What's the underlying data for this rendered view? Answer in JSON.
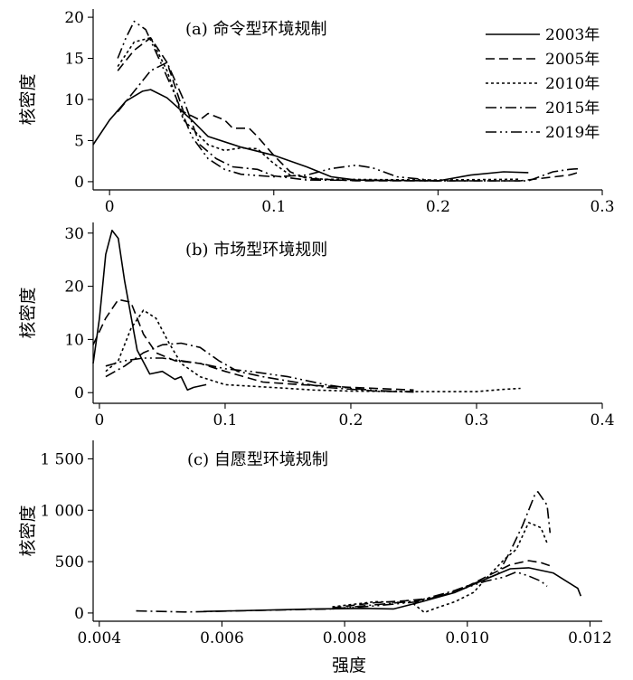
{
  "figure": {
    "xlabel": "强度"
  },
  "legend": {
    "entries": [
      {
        "name": "2003年",
        "dash": "solid"
      },
      {
        "name": "2005年",
        "dash": "dashed"
      },
      {
        "name": "2010年",
        "dash": "dotted"
      },
      {
        "name": "2015年",
        "dash": "dashdot"
      },
      {
        "name": "2019年",
        "dash": "dashdotdot"
      }
    ],
    "placement": "top-right of panel (a)"
  },
  "chart_data": [
    {
      "type": "line",
      "title": "(a) 命令型环境规制",
      "xlabel": "",
      "ylabel": "核密度",
      "xlim": [
        -0.01,
        0.3
      ],
      "ylim": [
        -1,
        21
      ],
      "xticks": [
        0,
        0.1,
        0.2,
        0.3
      ],
      "xtick_labels": [
        "0",
        "0.1",
        "0.2",
        "0.3"
      ],
      "yticks": [
        0,
        5,
        10,
        15,
        20
      ],
      "ytick_labels": [
        "0",
        "5",
        "10",
        "15",
        "20"
      ],
      "grid": false,
      "series": [
        {
          "name": "2003年",
          "dash": "solid",
          "points": [
            [
              -0.01,
              4.5
            ],
            [
              0,
              7.5
            ],
            [
              0.01,
              9.8
            ],
            [
              0.02,
              11
            ],
            [
              0.025,
              11.2
            ],
            [
              0.035,
              10.2
            ],
            [
              0.05,
              7.5
            ],
            [
              0.06,
              5.5
            ],
            [
              0.08,
              4.2
            ],
            [
              0.1,
              3.2
            ],
            [
              0.12,
              1.8
            ],
            [
              0.135,
              0.6
            ],
            [
              0.15,
              0.2
            ],
            [
              0.2,
              0.1
            ],
            [
              0.22,
              0.8
            ],
            [
              0.24,
              1.2
            ],
            [
              0.255,
              1.1
            ]
          ]
        },
        {
          "name": "2005年",
          "dash": "dashed",
          "points": [
            [
              0.005,
              13.5
            ],
            [
              0.015,
              16
            ],
            [
              0.025,
              17.5
            ],
            [
              0.035,
              14.5
            ],
            [
              0.045,
              8.5
            ],
            [
              0.055,
              7.5
            ],
            [
              0.06,
              8.3
            ],
            [
              0.07,
              7.5
            ],
            [
              0.075,
              6.5
            ],
            [
              0.085,
              6.5
            ],
            [
              0.09,
              5.5
            ],
            [
              0.1,
              3.2
            ],
            [
              0.11,
              1.2
            ],
            [
              0.12,
              0.4
            ],
            [
              0.15,
              0.1
            ],
            [
              0.25,
              0.1
            ],
            [
              0.28,
              0.8
            ],
            [
              0.285,
              1.1
            ]
          ]
        },
        {
          "name": "2010年",
          "dash": "dotted",
          "points": [
            [
              0.005,
              14
            ],
            [
              0.015,
              17
            ],
            [
              0.025,
              17.5
            ],
            [
              0.035,
              13.5
            ],
            [
              0.045,
              7.5
            ],
            [
              0.06,
              4.5
            ],
            [
              0.07,
              3.8
            ],
            [
              0.08,
              4.1
            ],
            [
              0.09,
              4.0
            ],
            [
              0.1,
              2.2
            ],
            [
              0.11,
              0.8
            ],
            [
              0.13,
              0.3
            ],
            [
              0.2,
              0.2
            ],
            [
              0.25,
              0.3
            ]
          ]
        },
        {
          "name": "2015年",
          "dash": "dashdot",
          "points": [
            [
              0.005,
              8.5
            ],
            [
              0.015,
              11
            ],
            [
              0.025,
              13.5
            ],
            [
              0.035,
              14.5
            ],
            [
              0.045,
              10
            ],
            [
              0.055,
              4.5
            ],
            [
              0.065,
              2.8
            ],
            [
              0.075,
              1.8
            ],
            [
              0.09,
              1.5
            ],
            [
              0.1,
              0.7
            ],
            [
              0.12,
              0.2
            ],
            [
              0.2,
              0.1
            ],
            [
              0.255,
              0.1
            ],
            [
              0.27,
              1.2
            ],
            [
              0.28,
              1.5
            ],
            [
              0.287,
              1.6
            ]
          ]
        },
        {
          "name": "2019年",
          "dash": "dashdotdot",
          "points": [
            [
              0.005,
              15
            ],
            [
              0.01,
              17.5
            ],
            [
              0.015,
              19.5
            ],
            [
              0.022,
              18.5
            ],
            [
              0.03,
              15
            ],
            [
              0.04,
              10.5
            ],
            [
              0.05,
              5.5
            ],
            [
              0.06,
              2.8
            ],
            [
              0.07,
              1.5
            ],
            [
              0.08,
              0.9
            ],
            [
              0.1,
              0.6
            ],
            [
              0.12,
              0.8
            ],
            [
              0.135,
              1.6
            ],
            [
              0.15,
              2.0
            ],
            [
              0.16,
              1.7
            ],
            [
              0.175,
              0.6
            ],
            [
              0.2,
              0.1
            ]
          ]
        }
      ]
    },
    {
      "type": "line",
      "title": "(b) 市场型环境规则",
      "xlabel": "",
      "ylabel": "核密度",
      "xlim": [
        -0.005,
        0.4
      ],
      "ylim": [
        -2,
        32
      ],
      "xticks": [
        0,
        0.1,
        0.2,
        0.3,
        0.4
      ],
      "xtick_labels": [
        "0",
        "0.1",
        "0.2",
        "0.3",
        "0.4"
      ],
      "yticks": [
        0,
        10,
        20,
        30
      ],
      "ytick_labels": [
        "0",
        "10",
        "20",
        "30"
      ],
      "grid": false,
      "series": [
        {
          "name": "2003年",
          "dash": "solid",
          "points": [
            [
              -0.005,
              5.5
            ],
            [
              0,
              14
            ],
            [
              0.005,
              26
            ],
            [
              0.01,
              30.5
            ],
            [
              0.015,
              29
            ],
            [
              0.02,
              21
            ],
            [
              0.03,
              8
            ],
            [
              0.04,
              3.5
            ],
            [
              0.05,
              4
            ],
            [
              0.06,
              2.5
            ],
            [
              0.065,
              3
            ],
            [
              0.07,
              0.5
            ],
            [
              0.075,
              1
            ],
            [
              0.085,
              1.5
            ]
          ]
        },
        {
          "name": "2005年",
          "dash": "dashed",
          "points": [
            [
              -0.005,
              9
            ],
            [
              0.005,
              14
            ],
            [
              0.015,
              17.5
            ],
            [
              0.025,
              17
            ],
            [
              0.035,
              11
            ],
            [
              0.045,
              7.5
            ],
            [
              0.06,
              6
            ],
            [
              0.08,
              5.5
            ],
            [
              0.1,
              4
            ],
            [
              0.13,
              2
            ],
            [
              0.16,
              1.5
            ],
            [
              0.2,
              1
            ],
            [
              0.25,
              0.5
            ]
          ]
        },
        {
          "name": "2010年",
          "dash": "dotted",
          "points": [
            [
              0.005,
              4
            ],
            [
              0.015,
              6
            ],
            [
              0.025,
              12
            ],
            [
              0.035,
              15.5
            ],
            [
              0.045,
              14
            ],
            [
              0.055,
              9.5
            ],
            [
              0.065,
              5.5
            ],
            [
              0.08,
              3
            ],
            [
              0.1,
              1.5
            ],
            [
              0.15,
              0.8
            ],
            [
              0.17,
              0.5
            ],
            [
              0.2,
              0.3
            ],
            [
              0.25,
              0.2
            ],
            [
              0.3,
              0.2
            ],
            [
              0.32,
              0.6
            ],
            [
              0.335,
              0.8
            ]
          ]
        },
        {
          "name": "2015年",
          "dash": "dashdot",
          "points": [
            [
              0.005,
              3
            ],
            [
              0.02,
              5
            ],
            [
              0.035,
              7.5
            ],
            [
              0.05,
              9
            ],
            [
              0.065,
              9.3
            ],
            [
              0.08,
              8.5
            ],
            [
              0.095,
              6
            ],
            [
              0.11,
              4
            ],
            [
              0.13,
              3
            ],
            [
              0.15,
              2.2
            ],
            [
              0.18,
              1
            ],
            [
              0.22,
              0.3
            ],
            [
              0.25,
              0.1
            ]
          ]
        },
        {
          "name": "2019年",
          "dash": "dashdotdot",
          "points": [
            [
              0.005,
              5
            ],
            [
              0.02,
              6
            ],
            [
              0.035,
              6.5
            ],
            [
              0.05,
              6.5
            ],
            [
              0.065,
              6
            ],
            [
              0.08,
              5.5
            ],
            [
              0.1,
              4.5
            ],
            [
              0.12,
              4
            ],
            [
              0.15,
              3
            ],
            [
              0.18,
              1.5
            ],
            [
              0.2,
              0.8
            ],
            [
              0.22,
              0.4
            ],
            [
              0.25,
              0.2
            ]
          ]
        }
      ]
    },
    {
      "type": "line",
      "title": "(c) 自愿型环境规制",
      "xlabel": "强度",
      "ylabel": "核密度",
      "xlim": [
        0.0039,
        0.0122
      ],
      "ylim": [
        -80,
        1680
      ],
      "xticks": [
        0.004,
        0.006,
        0.008,
        0.01,
        0.012
      ],
      "xtick_labels": [
        "0.004",
        "0.006",
        "0.008",
        "0.010",
        "0.012"
      ],
      "yticks": [
        0,
        500,
        1000,
        1500
      ],
      "ytick_labels": [
        "0",
        "500",
        "1 000",
        "1 500"
      ],
      "grid": false,
      "series": [
        {
          "name": "2003年",
          "dash": "solid",
          "points": [
            [
              0.0057,
              15
            ],
            [
              0.0065,
              25
            ],
            [
              0.0075,
              40
            ],
            [
              0.0083,
              45
            ],
            [
              0.0088,
              40
            ],
            [
              0.0092,
              100
            ],
            [
              0.0098,
              200
            ],
            [
              0.0103,
              330
            ],
            [
              0.0107,
              430
            ],
            [
              0.011,
              440
            ],
            [
              0.0114,
              390
            ],
            [
              0.0118,
              240
            ],
            [
              0.01185,
              165
            ]
          ]
        },
        {
          "name": "2005年",
          "dash": "dashed",
          "points": [
            [
              0.0078,
              50
            ],
            [
              0.0085,
              100
            ],
            [
              0.009,
              120
            ],
            [
              0.0095,
              150
            ],
            [
              0.01,
              260
            ],
            [
              0.0104,
              380
            ],
            [
              0.0107,
              470
            ],
            [
              0.011,
              510
            ],
            [
              0.0112,
              490
            ],
            [
              0.0114,
              450
            ]
          ]
        },
        {
          "name": "2010年",
          "dash": "dotted",
          "points": [
            [
              0.0078,
              60
            ],
            [
              0.0085,
              110
            ],
            [
              0.0091,
              100
            ],
            [
              0.0093,
              5
            ],
            [
              0.0095,
              50
            ],
            [
              0.0098,
              110
            ],
            [
              0.0101,
              200
            ],
            [
              0.0103,
              330
            ],
            [
              0.0106,
              520
            ],
            [
              0.0108,
              620
            ],
            [
              0.011,
              880
            ],
            [
              0.0112,
              830
            ],
            [
              0.0113,
              680
            ]
          ]
        },
        {
          "name": "2015年",
          "dash": "dashdot",
          "points": [
            [
              0.0046,
              20
            ],
            [
              0.0054,
              10
            ],
            [
              0.0062,
              20
            ],
            [
              0.007,
              30
            ],
            [
              0.0078,
              40
            ],
            [
              0.0085,
              80
            ],
            [
              0.0092,
              120
            ],
            [
              0.0098,
              220
            ],
            [
              0.0103,
              330
            ],
            [
              0.0105,
              380
            ],
            [
              0.0107,
              600
            ],
            [
              0.0109,
              850
            ],
            [
              0.0111,
              1150
            ],
            [
              0.01115,
              1180
            ],
            [
              0.0113,
              1050
            ],
            [
              0.01135,
              780
            ]
          ]
        },
        {
          "name": "2019年",
          "dash": "dashdotdot",
          "points": [
            [
              0.0078,
              40
            ],
            [
              0.0085,
              70
            ],
            [
              0.0092,
              110
            ],
            [
              0.0098,
              210
            ],
            [
              0.0103,
              310
            ],
            [
              0.0106,
              350
            ],
            [
              0.0108,
              400
            ],
            [
              0.011,
              360
            ],
            [
              0.0112,
              310
            ],
            [
              0.0113,
              260
            ]
          ]
        }
      ]
    }
  ]
}
